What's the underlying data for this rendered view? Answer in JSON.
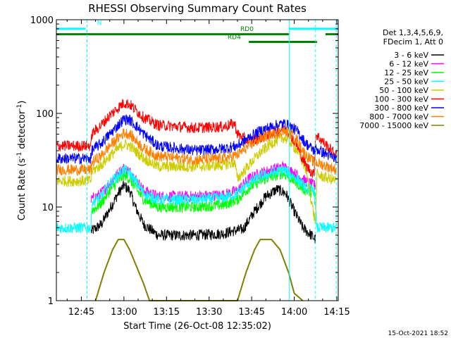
{
  "chart_data": {
    "type": "line",
    "title": "RHESSI Observing Summary Count Rates",
    "xlabel": "Start Time (26-Oct-08 12:35:02)",
    "ylabel_main": "Count Rate (s",
    "ylabel_sup1": "-1",
    "ylabel_mid": " detector",
    "ylabel_sup2": "-1",
    "ylabel_end": ")",
    "y_scale": "log",
    "xlim_min": [
      36.2,
      135.5
    ],
    "ylim": [
      1,
      1000
    ],
    "x_ticks": [
      {
        "min": 45,
        "label": "12:45"
      },
      {
        "min": 60,
        "label": "13:00"
      },
      {
        "min": 75,
        "label": "13:15"
      },
      {
        "min": 90,
        "label": "13:30"
      },
      {
        "min": 105,
        "label": "13:45"
      },
      {
        "min": 120,
        "label": "14:00"
      },
      {
        "min": 135,
        "label": "14:15"
      }
    ],
    "y_ticks": [
      {
        "value": 1,
        "label": "1"
      },
      {
        "value": 10,
        "label": "10"
      },
      {
        "value": 100,
        "label": "100"
      },
      {
        "value": 1000,
        "label": "1000"
      }
    ],
    "legend_header": [
      "Det 1,3,4,5,6,9,",
      "FDecim 1, Att 0"
    ],
    "legend_position": "right",
    "series": [
      {
        "name": "3 - 6 keV",
        "color": "#000000",
        "points": [
          [
            48.5,
            5.5
          ],
          [
            52,
            6.5
          ],
          [
            55,
            9.5
          ],
          [
            58,
            14
          ],
          [
            60,
            17
          ],
          [
            62,
            15
          ],
          [
            64,
            10
          ],
          [
            67,
            6.5
          ],
          [
            72,
            5
          ],
          [
            85,
            5
          ],
          [
            95,
            5.2
          ],
          [
            98,
            5.5
          ],
          [
            102,
            5.8
          ],
          [
            106,
            9
          ],
          [
            110,
            13
          ],
          [
            114,
            15.5
          ],
          [
            117,
            14
          ],
          [
            120,
            9
          ],
          [
            123,
            6
          ],
          [
            126,
            5
          ],
          [
            127.5,
            4.5
          ]
        ]
      },
      {
        "name": "6 - 12 keV",
        "color": "#ff00ff",
        "points": [
          [
            48.5,
            12
          ],
          [
            52,
            14
          ],
          [
            55,
            18
          ],
          [
            58,
            23
          ],
          [
            60,
            26
          ],
          [
            62,
            24
          ],
          [
            64,
            20
          ],
          [
            67,
            15
          ],
          [
            72,
            13
          ],
          [
            85,
            13
          ],
          [
            95,
            13.5
          ],
          [
            100,
            15
          ],
          [
            104,
            20
          ],
          [
            108,
            23
          ],
          [
            112,
            25
          ],
          [
            116,
            27
          ],
          [
            118,
            25
          ],
          [
            121,
            22
          ],
          [
            124,
            19
          ],
          [
            127,
            17
          ],
          [
            127.5,
            17
          ]
        ]
      },
      {
        "name": "12 - 25 keV",
        "color": "#00ff00",
        "points": [
          [
            48.5,
            9
          ],
          [
            52,
            11
          ],
          [
            55,
            15
          ],
          [
            58,
            19
          ],
          [
            60,
            22
          ],
          [
            62,
            20
          ],
          [
            64,
            16
          ],
          [
            67,
            12
          ],
          [
            72,
            10
          ],
          [
            85,
            10
          ],
          [
            95,
            10.5
          ],
          [
            100,
            12
          ],
          [
            104,
            16
          ],
          [
            108,
            19
          ],
          [
            112,
            21
          ],
          [
            116,
            23
          ],
          [
            118,
            21
          ],
          [
            121,
            18
          ],
          [
            124,
            15
          ],
          [
            127,
            14
          ],
          [
            127.5,
            13
          ]
        ]
      },
      {
        "name": "25 - 50 keV",
        "color": "#00ffff",
        "points": [
          [
            36.2,
            6
          ],
          [
            48.5,
            6
          ],
          [
            48.6,
            11
          ],
          [
            52,
            13
          ],
          [
            55,
            18
          ],
          [
            58,
            22
          ],
          [
            60,
            25
          ],
          [
            62,
            23
          ],
          [
            64,
            19
          ],
          [
            67,
            14
          ],
          [
            72,
            12
          ],
          [
            85,
            12
          ],
          [
            95,
            12.5
          ],
          [
            100,
            14
          ],
          [
            104,
            18
          ],
          [
            108,
            21
          ],
          [
            112,
            23
          ],
          [
            116,
            25
          ],
          [
            118,
            23
          ],
          [
            121,
            20
          ],
          [
            124,
            16
          ],
          [
            127,
            15
          ],
          [
            128,
            6
          ],
          [
            135,
            6
          ]
        ]
      },
      {
        "name": "50 - 100 keV",
        "color": "#cccc00",
        "points": [
          [
            36.2,
            19
          ],
          [
            48.5,
            19
          ],
          [
            48.6,
            24
          ],
          [
            52,
            28
          ],
          [
            55,
            35
          ],
          [
            58,
            42
          ],
          [
            60,
            47
          ],
          [
            62,
            45
          ],
          [
            64,
            40
          ],
          [
            67,
            33
          ],
          [
            72,
            27
          ],
          [
            85,
            27
          ],
          [
            95,
            28
          ],
          [
            99,
            30
          ],
          [
            100,
            20
          ],
          [
            104,
            28
          ],
          [
            108,
            38
          ],
          [
            112,
            48
          ],
          [
            116,
            55
          ],
          [
            118,
            52
          ],
          [
            121,
            40
          ],
          [
            124,
            26
          ],
          [
            127,
            8
          ],
          [
            127.5,
            7
          ],
          [
            128,
            22
          ],
          [
            135,
            19
          ]
        ]
      },
      {
        "name": "100 - 300 keV",
        "color": "#ff0000",
        "points": [
          [
            36.2,
            45
          ],
          [
            48.5,
            45
          ],
          [
            48.6,
            60
          ],
          [
            52,
            75
          ],
          [
            55,
            95
          ],
          [
            58,
            115
          ],
          [
            60,
            130
          ],
          [
            62,
            125
          ],
          [
            64,
            110
          ],
          [
            67,
            90
          ],
          [
            72,
            75
          ],
          [
            85,
            70
          ],
          [
            95,
            72
          ],
          [
            99,
            78
          ],
          [
            100,
            60
          ],
          [
            104,
            50
          ],
          [
            108,
            55
          ],
          [
            112,
            62
          ],
          [
            116,
            68
          ],
          [
            118,
            64
          ],
          [
            121,
            45
          ],
          [
            124,
            28
          ],
          [
            127,
            22
          ],
          [
            127.5,
            60
          ],
          [
            135,
            35
          ]
        ]
      },
      {
        "name": "300 - 800 keV",
        "color": "#0000ff",
        "points": [
          [
            36.2,
            33
          ],
          [
            48.5,
            33
          ],
          [
            48.6,
            40
          ],
          [
            52,
            48
          ],
          [
            55,
            60
          ],
          [
            58,
            75
          ],
          [
            60,
            87
          ],
          [
            62,
            85
          ],
          [
            64,
            75
          ],
          [
            67,
            60
          ],
          [
            72,
            45
          ],
          [
            85,
            40
          ],
          [
            95,
            42
          ],
          [
            100,
            45
          ],
          [
            104,
            55
          ],
          [
            108,
            65
          ],
          [
            112,
            72
          ],
          [
            116,
            78
          ],
          [
            118,
            74
          ],
          [
            121,
            65
          ],
          [
            124,
            48
          ],
          [
            127,
            40
          ],
          [
            127.5,
            42
          ],
          [
            135,
            32
          ]
        ]
      },
      {
        "name": "800 - 7000 keV",
        "color": "#ff8000",
        "points": [
          [
            36.2,
            25
          ],
          [
            48.5,
            25
          ],
          [
            48.6,
            30
          ],
          [
            52,
            35
          ],
          [
            55,
            45
          ],
          [
            58,
            55
          ],
          [
            60,
            62
          ],
          [
            62,
            60
          ],
          [
            64,
            52
          ],
          [
            67,
            42
          ],
          [
            72,
            35
          ],
          [
            85,
            32
          ],
          [
            95,
            33
          ],
          [
            100,
            36
          ],
          [
            104,
            45
          ],
          [
            108,
            53
          ],
          [
            112,
            60
          ],
          [
            116,
            65
          ],
          [
            118,
            62
          ],
          [
            121,
            52
          ],
          [
            124,
            36
          ],
          [
            127,
            30
          ],
          [
            127.5,
            30
          ],
          [
            135,
            25
          ]
        ]
      },
      {
        "name": "7000 - 15000 keV",
        "color": "#808000",
        "points": [
          [
            50,
            1
          ],
          [
            53,
            2
          ],
          [
            56,
            3.5
          ],
          [
            58,
            4.5
          ],
          [
            60,
            4.5
          ],
          [
            62,
            3.5
          ],
          [
            64,
            2.5
          ],
          [
            67,
            1.5
          ],
          [
            69,
            1
          ],
          [
            100,
            1
          ],
          [
            103,
            2
          ],
          [
            106,
            3.5
          ],
          [
            108,
            4.5
          ],
          [
            112,
            4.5
          ],
          [
            115,
            3.5
          ],
          [
            118,
            2
          ],
          [
            120,
            1.2
          ],
          [
            123,
            1
          ]
        ]
      }
    ],
    "annotations": [
      {
        "label": "N",
        "color": "#00ffff"
      },
      {
        "label": "RD0",
        "color": "#008000"
      },
      {
        "label": "RD4",
        "color": "#008000"
      }
    ],
    "flag_bars": [
      {
        "color": "#00ffff",
        "y": 800,
        "x1": 36.2,
        "x2": 46.5
      },
      {
        "color": "#00ffff",
        "y": 800,
        "x1": 118.2,
        "x2": 135.5
      },
      {
        "color": "#008000",
        "y": 700,
        "x1": 36.2,
        "x2": 118.2
      },
      {
        "color": "#008000",
        "y": 700,
        "x1": 131,
        "x2": 135.5
      },
      {
        "color": "#008000",
        "y": 580,
        "x1": 104,
        "x2": 128
      }
    ],
    "vlines": [
      {
        "x": 47,
        "color": "#00ffff",
        "dashed": true
      },
      {
        "x": 118.2,
        "color": "#00ffff",
        "dashed": false
      },
      {
        "x": 127.5,
        "color": "#00ffff",
        "dashed": true
      },
      {
        "x": 134.8,
        "color": "#00ffff",
        "dashed": true
      }
    ],
    "timestamp": "15-Oct-2021 18:52"
  }
}
